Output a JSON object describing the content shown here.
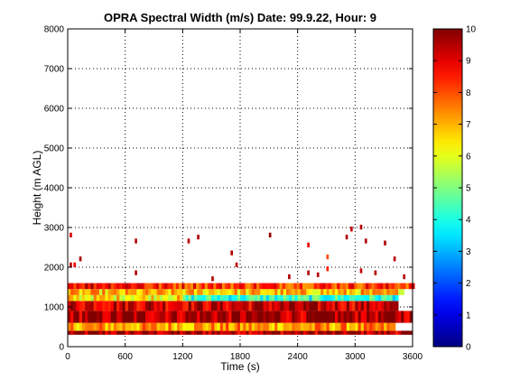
{
  "chart_data": {
    "type": "heatmap",
    "title": "OPRA Spectral Width (m/s)  Date: 99.9.22, Hour: 9",
    "xlabel": "Time (s)",
    "ylabel": "Height (m AGL)",
    "xlim": [
      0,
      3600
    ],
    "ylim": [
      0,
      8000
    ],
    "xticks": [
      "0",
      "600",
      "1200",
      "1800",
      "2400",
      "3000",
      "3600"
    ],
    "yticks": [
      "0",
      "1000",
      "2000",
      "3000",
      "4000",
      "5000",
      "6000",
      "7000",
      "8000"
    ],
    "grid": true,
    "colorbar": {
      "range": [
        0,
        10
      ],
      "ticks": [
        "0",
        "1",
        "2",
        "3",
        "4",
        "5",
        "6",
        "7",
        "8",
        "9",
        "10"
      ],
      "colormap": "jet"
    },
    "bands": [
      {
        "h0": 300,
        "h1": 400,
        "value": 9.5
      },
      {
        "h0": 400,
        "h1": 600,
        "value": 7.2,
        "x1": 3400
      },
      {
        "h0": 600,
        "h1": 900,
        "value": 9.6
      },
      {
        "h0": 900,
        "h1": 1150,
        "value": 9.3,
        "x1": 3450
      },
      {
        "h0": 1150,
        "h1": 1300,
        "value": 6.5,
        "x1": 1200
      },
      {
        "h0": 1150,
        "h1": 1300,
        "value": 4.2,
        "x0": 1200,
        "x1": 3450
      },
      {
        "h0": 1300,
        "h1": 1450,
        "value": 6.8,
        "x1": 3500
      },
      {
        "h0": 1450,
        "h1": 1600,
        "value": 9.0,
        "x1": 800
      },
      {
        "h0": 1450,
        "h1": 1600,
        "value": 8.3,
        "x0": 800,
        "x1": 3600
      }
    ],
    "cells": [
      {
        "t": 20,
        "h": 2000,
        "v": 9.5
      },
      {
        "t": 60,
        "h": 2000,
        "v": 8.8
      },
      {
        "t": 120,
        "h": 2150,
        "v": 9.6
      },
      {
        "t": 20,
        "h": 2750,
        "v": 9.2
      },
      {
        "t": 700,
        "h": 2600,
        "v": 9.5
      },
      {
        "t": 1250,
        "h": 2600,
        "v": 9.5
      },
      {
        "t": 1350,
        "h": 2700,
        "v": 9.5
      },
      {
        "t": 1700,
        "h": 2300,
        "v": 9.5
      },
      {
        "t": 1750,
        "h": 2000,
        "v": 9.3
      },
      {
        "t": 2100,
        "h": 2750,
        "v": 9.8
      },
      {
        "t": 2500,
        "h": 2500,
        "v": 8.9
      },
      {
        "t": 2700,
        "h": 2200,
        "v": 8.0
      },
      {
        "t": 2900,
        "h": 2700,
        "v": 9.5
      },
      {
        "t": 2950,
        "h": 2900,
        "v": 9.3
      },
      {
        "t": 3050,
        "h": 2950,
        "v": 9.5
      },
      {
        "t": 3100,
        "h": 2600,
        "v": 9.5
      },
      {
        "t": 3300,
        "h": 2550,
        "v": 9.5
      },
      {
        "t": 3400,
        "h": 2150,
        "v": 9.5
      },
      {
        "t": 3050,
        "h": 1850,
        "v": 9.3
      },
      {
        "t": 2700,
        "h": 1900,
        "v": 8.5
      },
      {
        "t": 2600,
        "h": 1750,
        "v": 9.5
      },
      {
        "t": 1500,
        "h": 1650,
        "v": 9.5
      },
      {
        "t": 2300,
        "h": 1700,
        "v": 9.5
      },
      {
        "t": 2500,
        "h": 1800,
        "v": 9.5
      },
      {
        "t": 3200,
        "h": 1800,
        "v": 9.5
      },
      {
        "t": 3500,
        "h": 1700,
        "v": 9.5
      },
      {
        "t": 700,
        "h": 1800,
        "v": 9.5
      }
    ]
  }
}
